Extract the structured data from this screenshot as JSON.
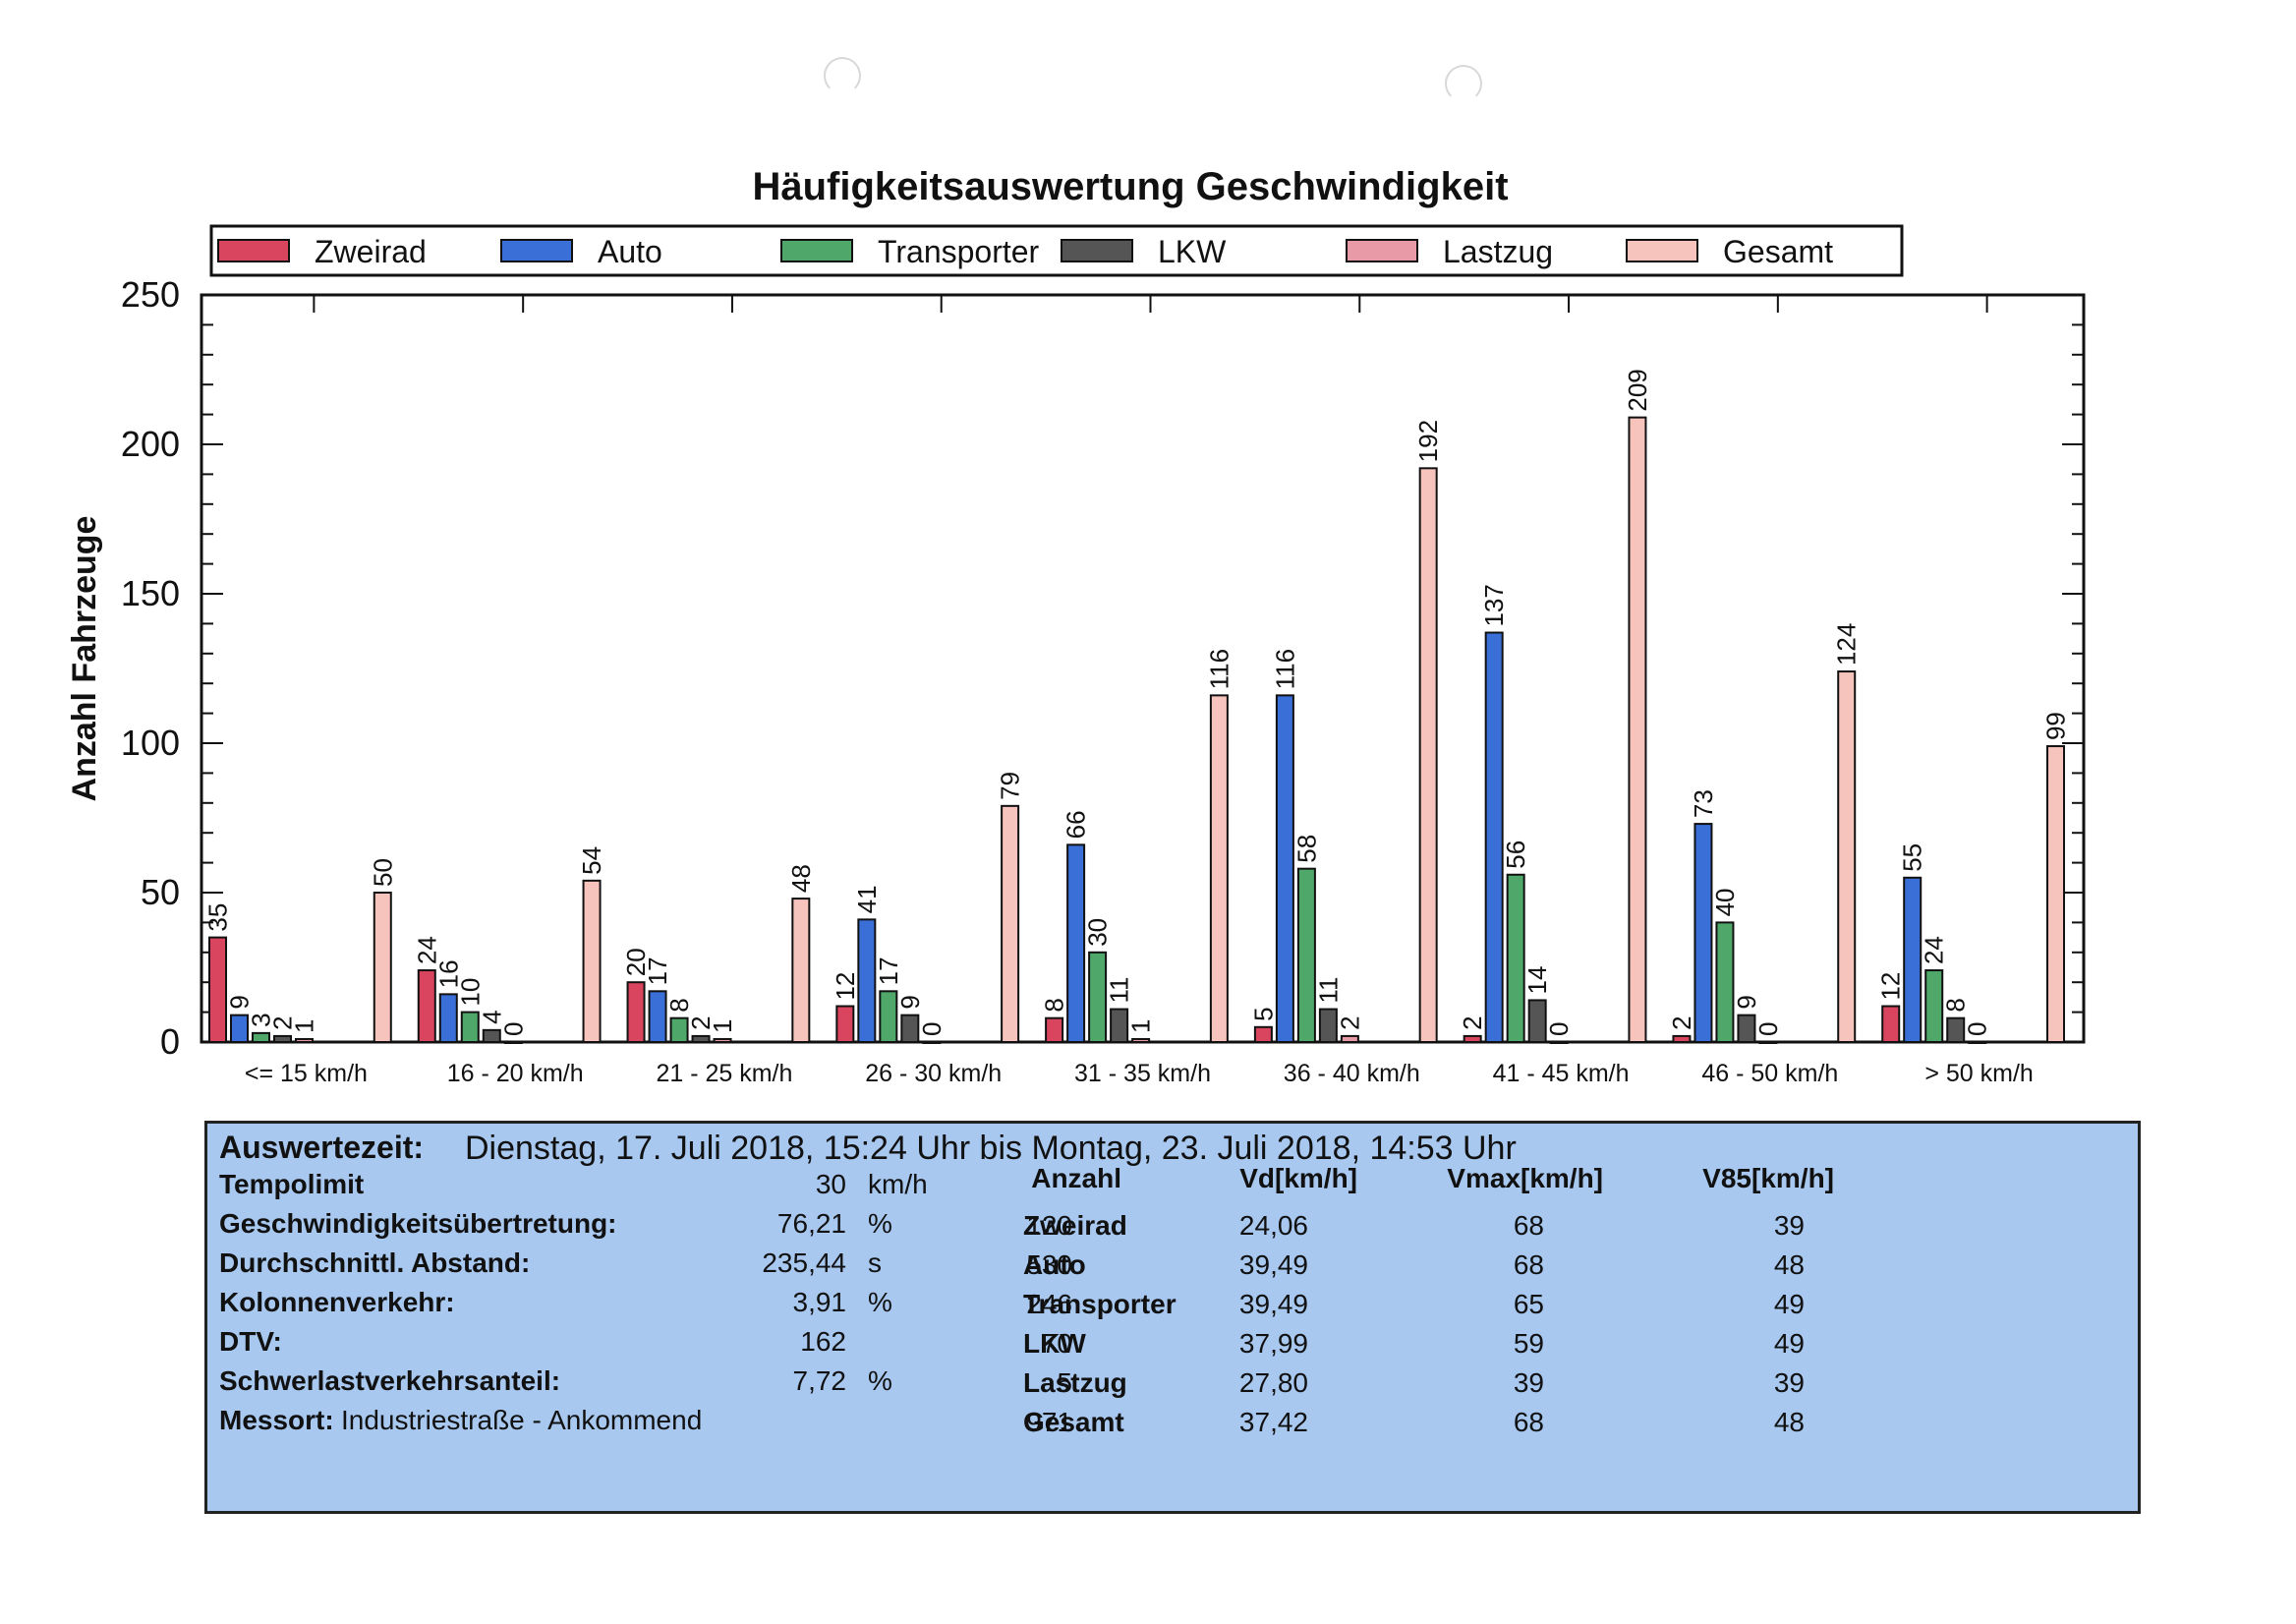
{
  "chart_data": {
    "type": "bar",
    "title": "Häufigkeitsauswertung Geschwindigkeit",
    "ylabel": "Anzahl Fahrzeuge",
    "xlabel": "",
    "ylim": [
      0,
      250
    ],
    "yticks": [
      0,
      50,
      100,
      150,
      200,
      250
    ],
    "grid": false,
    "legend_position": "top",
    "categories": [
      "<= 15 km/h",
      "16 - 20 km/h",
      "21 - 25 km/h",
      "26 - 30 km/h",
      "31 - 35 km/h",
      "36 - 40 km/h",
      "41 - 45 km/h",
      "46 - 50 km/h",
      "> 50 km/h"
    ],
    "series": [
      {
        "name": "Zweirad",
        "color": "#d9455f",
        "values": [
          35,
          24,
          20,
          12,
          8,
          5,
          2,
          2,
          12
        ]
      },
      {
        "name": "Auto",
        "color": "#3a6fd8",
        "values": [
          9,
          16,
          17,
          41,
          66,
          116,
          137,
          73,
          55
        ]
      },
      {
        "name": "Transporter",
        "color": "#4fa86a",
        "values": [
          3,
          10,
          8,
          17,
          30,
          58,
          56,
          40,
          24
        ]
      },
      {
        "name": "LKW",
        "color": "#555555",
        "values": [
          2,
          4,
          2,
          9,
          11,
          11,
          14,
          9,
          8
        ]
      },
      {
        "name": "Lastzug",
        "color": "#e89aa6",
        "values": [
          1,
          0,
          1,
          0,
          1,
          2,
          0,
          0,
          0
        ]
      },
      {
        "name": "Gesamt",
        "color": "#f7c3bd",
        "values": [
          50,
          54,
          48,
          79,
          116,
          192,
          209,
          124,
          99
        ]
      }
    ]
  },
  "info": {
    "auswertezeit_label": "Auswertezeit:",
    "auswertezeit_value": "Dienstag, 17. Juli 2018, 15:24 Uhr bis  Montag, 23. Juli 2018, 14:53 Uhr",
    "left_rows": [
      {
        "label": "Tempolimit",
        "value": "30",
        "unit": "km/h"
      },
      {
        "label": "Geschwindigkeitsübertretung:",
        "value": "76,21",
        "unit": "%"
      },
      {
        "label": "Durchschnittl. Abstand:",
        "value": "235,44",
        "unit": "s"
      },
      {
        "label": "Kolonnenverkehr:",
        "value": "3,91",
        "unit": "%"
      },
      {
        "label": "DTV:",
        "value": "162",
        "unit": ""
      },
      {
        "label": "Schwerlastverkehrsanteil:",
        "value": "7,72",
        "unit": "%"
      }
    ],
    "messort_label": "Messort:",
    "messort_value": "Industriestraße - Ankommend",
    "table_headers": [
      "Anzahl",
      "Vd[km/h]",
      "Vmax[km/h]",
      "V85[km/h]"
    ],
    "table_rows": [
      {
        "name": "Zweirad",
        "anzahl": "120",
        "vd": "24,06",
        "vmax": "68",
        "v85": "39"
      },
      {
        "name": "Auto",
        "anzahl": "530",
        "vd": "39,49",
        "vmax": "68",
        "v85": "48"
      },
      {
        "name": "Transporter",
        "anzahl": "246",
        "vd": "39,49",
        "vmax": "65",
        "v85": "49"
      },
      {
        "name": "LKW",
        "anzahl": "70",
        "vd": "37,99",
        "vmax": "59",
        "v85": "49"
      },
      {
        "name": "Lastzug",
        "anzahl": "5",
        "vd": "27,80",
        "vmax": "39",
        "v85": "39"
      },
      {
        "name": "Gesamt",
        "anzahl": "971",
        "vd": "37,42",
        "vmax": "68",
        "v85": "48"
      }
    ]
  }
}
